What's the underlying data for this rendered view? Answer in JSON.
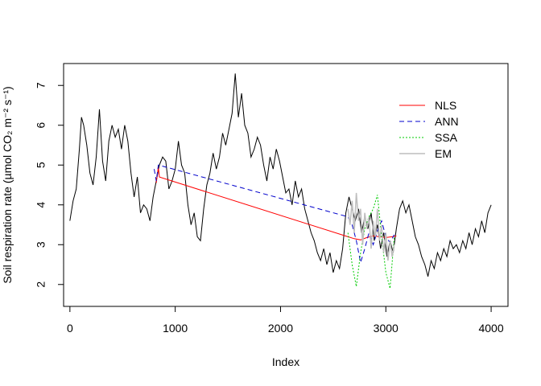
{
  "chart_data": {
    "type": "line",
    "title": "",
    "xlabel": "Index",
    "ylabel": "Soil respiration rate (µmol CO₂ m⁻² s⁻¹)",
    "xlim": [
      -60,
      4160
    ],
    "ylim": [
      1.45,
      7.55
    ],
    "x_ticks": [
      0,
      1000,
      2000,
      3000,
      4000
    ],
    "y_ticks": [
      2,
      3,
      4,
      5,
      6,
      7
    ],
    "grid": false,
    "legend_position": "top-right",
    "series": [
      {
        "name": "",
        "color": "#000000",
        "style": "solid",
        "x": [
          0,
          30,
          60,
          90,
          110,
          130,
          160,
          190,
          220,
          250,
          280,
          310,
          340,
          370,
          400,
          430,
          460,
          490,
          520,
          550,
          580,
          610,
          640,
          670,
          700,
          730,
          760,
          790,
          820,
          850,
          880,
          910,
          940,
          970,
          1000,
          1030,
          1060,
          1090,
          1120,
          1150,
          1180,
          1210,
          1240,
          1270,
          1300,
          1330,
          1360,
          1390,
          1420,
          1450,
          1480,
          1510,
          1540,
          1570,
          1600,
          1630,
          1660,
          1690,
          1720,
          1750,
          1780,
          1810,
          1840,
          1870,
          1900,
          1930,
          1960,
          1990,
          2020,
          2050,
          2080,
          2110,
          2140,
          2170,
          2200,
          2230,
          2260,
          2290,
          2320,
          2350,
          2380,
          2410,
          2440,
          2470,
          2500,
          2530,
          2560,
          2590,
          2620,
          2650,
          2680,
          2710,
          2740,
          2770,
          2800,
          2830,
          2860,
          2890,
          2920,
          2950,
          2980,
          3010,
          3040,
          3070,
          3100,
          3130,
          3160,
          3190,
          3220,
          3250,
          3280,
          3310,
          3340,
          3370,
          3400,
          3430,
          3460,
          3490,
          3520,
          3550,
          3580,
          3610,
          3640,
          3670,
          3700,
          3730,
          3760,
          3790,
          3820,
          3850,
          3880,
          3910,
          3940,
          3970,
          4000
        ],
        "y": [
          3.6,
          4.1,
          4.4,
          5.4,
          6.2,
          6.0,
          5.5,
          4.8,
          4.5,
          5.2,
          6.4,
          5.1,
          4.6,
          5.6,
          6.0,
          5.7,
          5.9,
          5.4,
          6.0,
          5.6,
          4.8,
          4.2,
          4.7,
          3.8,
          4.0,
          3.9,
          3.6,
          4.2,
          4.6,
          5.0,
          5.2,
          5.1,
          4.4,
          4.6,
          4.9,
          5.6,
          5.0,
          4.8,
          4.0,
          3.5,
          3.8,
          3.2,
          3.1,
          3.9,
          4.5,
          4.8,
          5.3,
          4.9,
          5.2,
          5.8,
          5.5,
          5.9,
          6.3,
          7.3,
          6.2,
          6.8,
          6.0,
          5.8,
          5.2,
          5.4,
          5.7,
          5.5,
          5.0,
          4.6,
          5.2,
          4.9,
          5.4,
          5.1,
          4.7,
          4.3,
          4.4,
          4.0,
          4.6,
          4.2,
          4.4,
          3.9,
          3.6,
          3.3,
          3.1,
          2.8,
          2.6,
          2.9,
          2.5,
          2.8,
          2.3,
          2.6,
          2.4,
          2.9,
          3.8,
          4.2,
          3.9,
          3.6,
          3.9,
          3.3,
          3.7,
          3.4,
          3.8,
          3.1,
          3.5,
          2.9,
          3.3,
          2.7,
          3.1,
          2.8,
          3.4,
          3.9,
          4.1,
          3.8,
          4.0,
          3.6,
          3.2,
          3.0,
          2.7,
          2.5,
          2.2,
          2.6,
          2.4,
          2.8,
          2.6,
          2.9,
          2.7,
          3.1,
          2.9,
          3.0,
          2.8,
          3.1,
          2.9,
          3.3,
          3.0,
          3.4,
          3.2,
          3.6,
          3.3,
          3.8,
          4.0
        ]
      },
      {
        "name": "NLS",
        "color": "#ff0000",
        "style": "solid",
        "x": [
          820,
          830,
          840,
          850,
          2640,
          2700,
          2760,
          2820,
          2880,
          2940,
          3000,
          3060,
          3100
        ],
        "y": [
          4.55,
          4.75,
          4.95,
          4.7,
          3.2,
          3.15,
          3.12,
          3.18,
          3.22,
          3.2,
          3.18,
          3.2,
          3.22
        ]
      },
      {
        "name": "ANN",
        "color": "#0000cc",
        "style": "dashed",
        "x": [
          800,
          820,
          840,
          2640,
          2680,
          2720,
          2760,
          2800,
          2840,
          2880,
          2920,
          2960,
          3000,
          3040,
          3080
        ],
        "y": [
          4.9,
          4.6,
          5.0,
          3.7,
          3.5,
          3.1,
          2.55,
          2.9,
          3.3,
          3.0,
          3.35,
          3.6,
          3.2,
          3.05,
          3.25
        ]
      },
      {
        "name": "SSA",
        "color": "#00cc00",
        "style": "dotted",
        "x": [
          2640,
          2680,
          2720,
          2760,
          2800,
          2840,
          2880,
          2920,
          2960,
          3000,
          3040,
          3080
        ],
        "y": [
          3.3,
          2.5,
          1.95,
          2.8,
          3.4,
          3.7,
          3.9,
          4.25,
          3.2,
          2.3,
          1.9,
          3.2
        ]
      },
      {
        "name": "EM",
        "color": "#bebebe",
        "style": "solid",
        "x": [
          2640,
          2660,
          2680,
          2700,
          2720,
          2740,
          2760,
          2780,
          2800,
          2820,
          2840,
          2860,
          2880,
          2900,
          2920,
          2940,
          2960,
          2980,
          3000,
          3020,
          3040,
          3060,
          3080
        ],
        "y": [
          3.9,
          3.5,
          4.1,
          3.3,
          4.3,
          3.6,
          3.9,
          3.0,
          3.8,
          3.4,
          3.7,
          2.9,
          3.6,
          3.2,
          3.9,
          3.1,
          3.5,
          2.8,
          3.3,
          2.6,
          3.1,
          2.7,
          3.0
        ]
      }
    ]
  }
}
